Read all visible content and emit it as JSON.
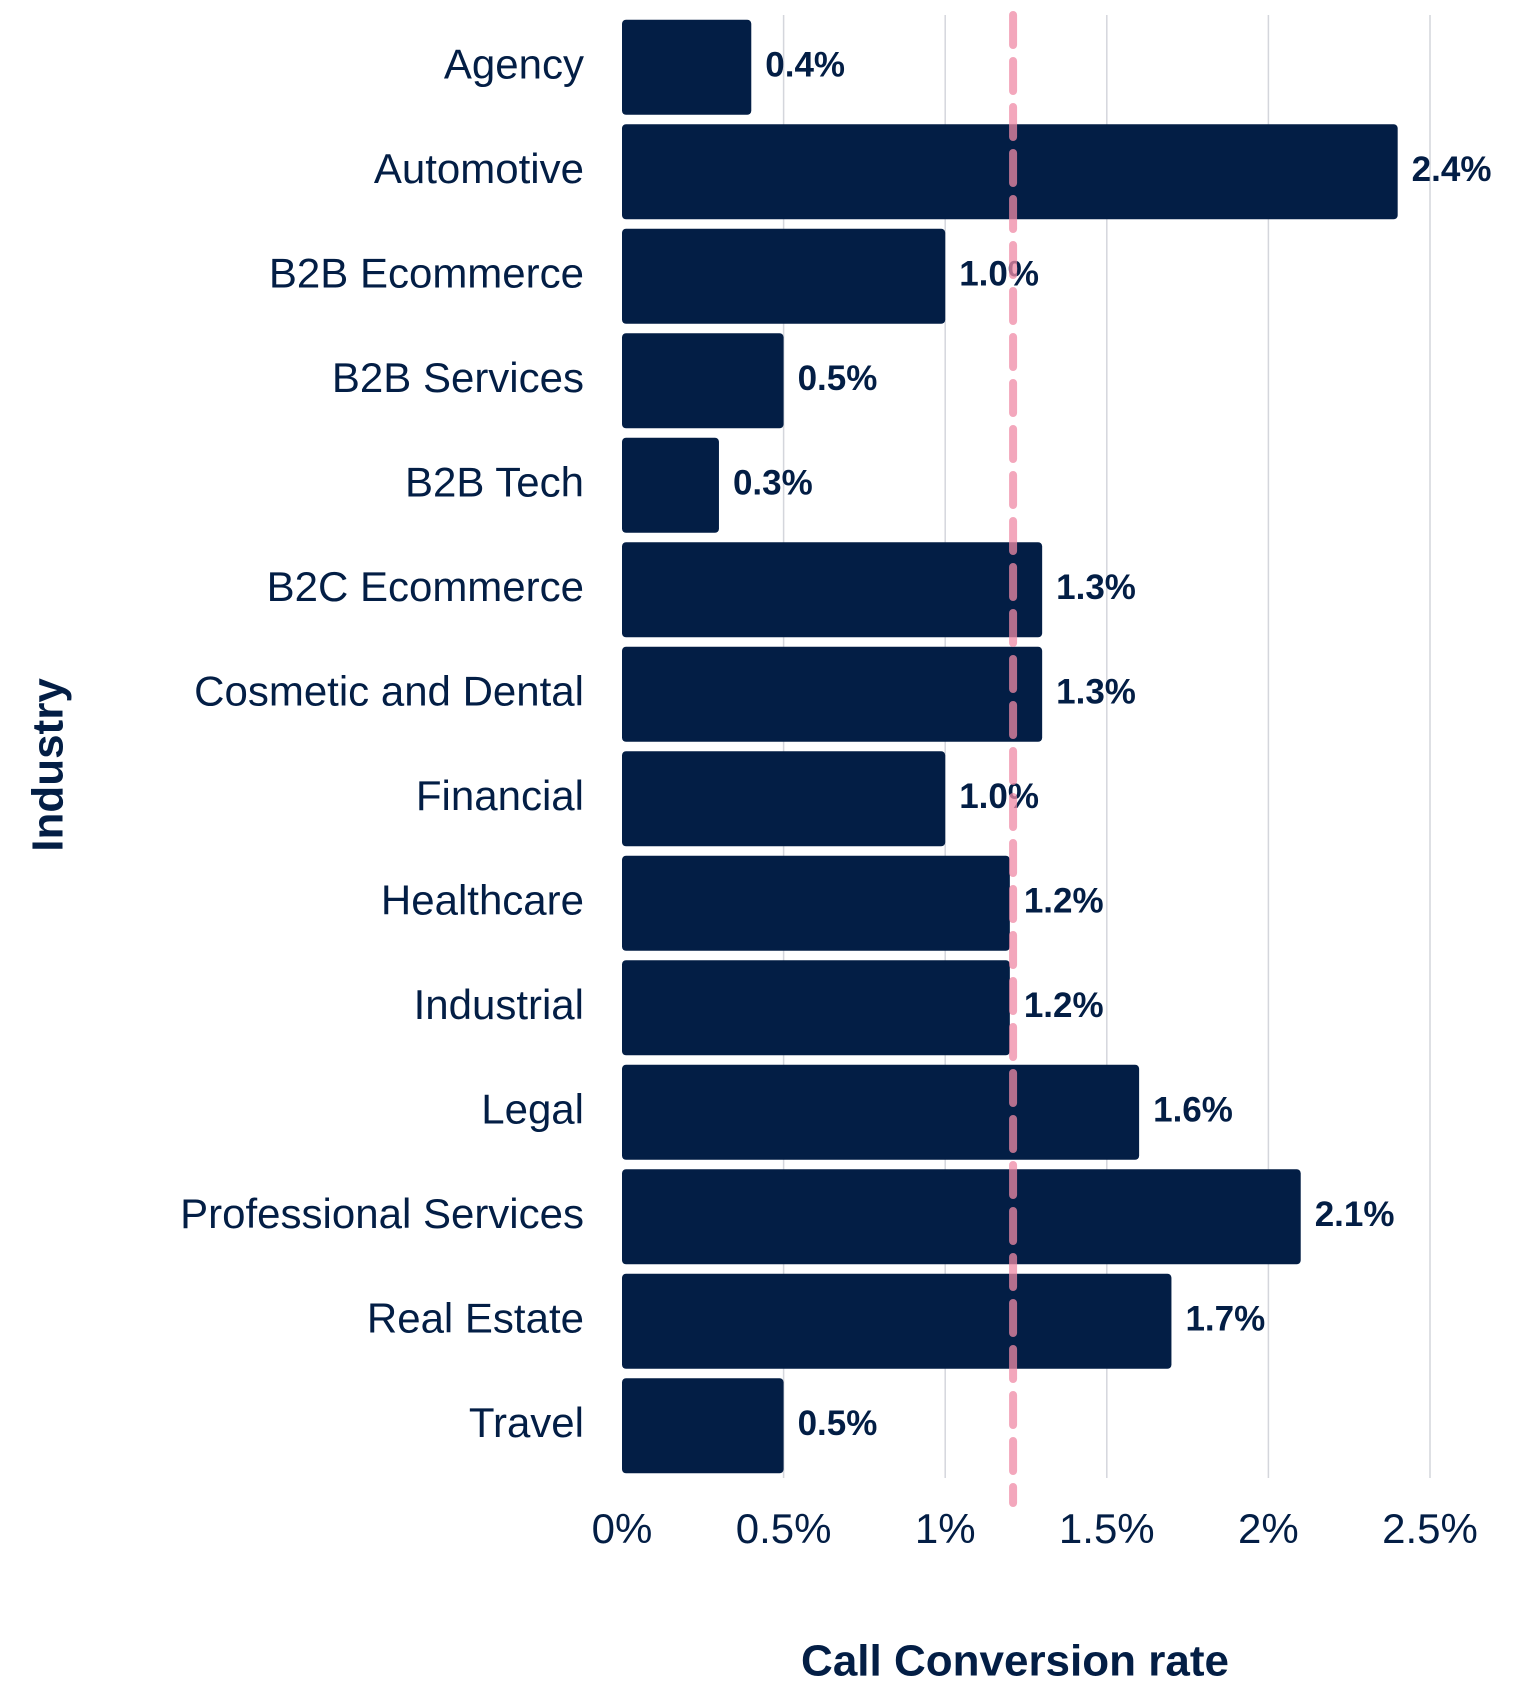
{
  "chart_data": {
    "type": "barh",
    "x_label": "Call Conversion rate",
    "y_label": "Industry",
    "categories": [
      "Agency",
      "Automotive",
      "B2B Ecommerce",
      "B2B Services",
      "B2B Tech",
      "B2C Ecommerce",
      "Cosmetic and Dental",
      "Financial",
      "Healthcare",
      "Industrial",
      "Legal",
      "Professional Services",
      "Real Estate",
      "Travel"
    ],
    "values": [
      0.4,
      2.4,
      1.0,
      0.5,
      0.3,
      1.3,
      1.3,
      1.0,
      1.2,
      1.2,
      1.6,
      2.1,
      1.7,
      0.5
    ],
    "value_labels": [
      "0.4%",
      "2.4%",
      "1.0%",
      "0.5%",
      "0.3%",
      "1.3%",
      "1.3%",
      "1.0%",
      "1.2%",
      "1.2%",
      "1.6%",
      "2.1%",
      "1.7%",
      "0.5%"
    ],
    "color": "#031e45",
    "xlim": [
      0,
      2.5
    ],
    "xticks": [
      {
        "value": 0,
        "label": "0%"
      },
      {
        "value": 0.5,
        "label": "0.5%"
      },
      {
        "value": 1,
        "label": "1%"
      },
      {
        "value": 1.5,
        "label": "1.5%"
      },
      {
        "value": 2,
        "label": "2%"
      },
      {
        "value": 2.5,
        "label": "2.5%"
      }
    ],
    "grid": true,
    "reference_line": 1.21,
    "reference_color": "#f08aa6"
  }
}
